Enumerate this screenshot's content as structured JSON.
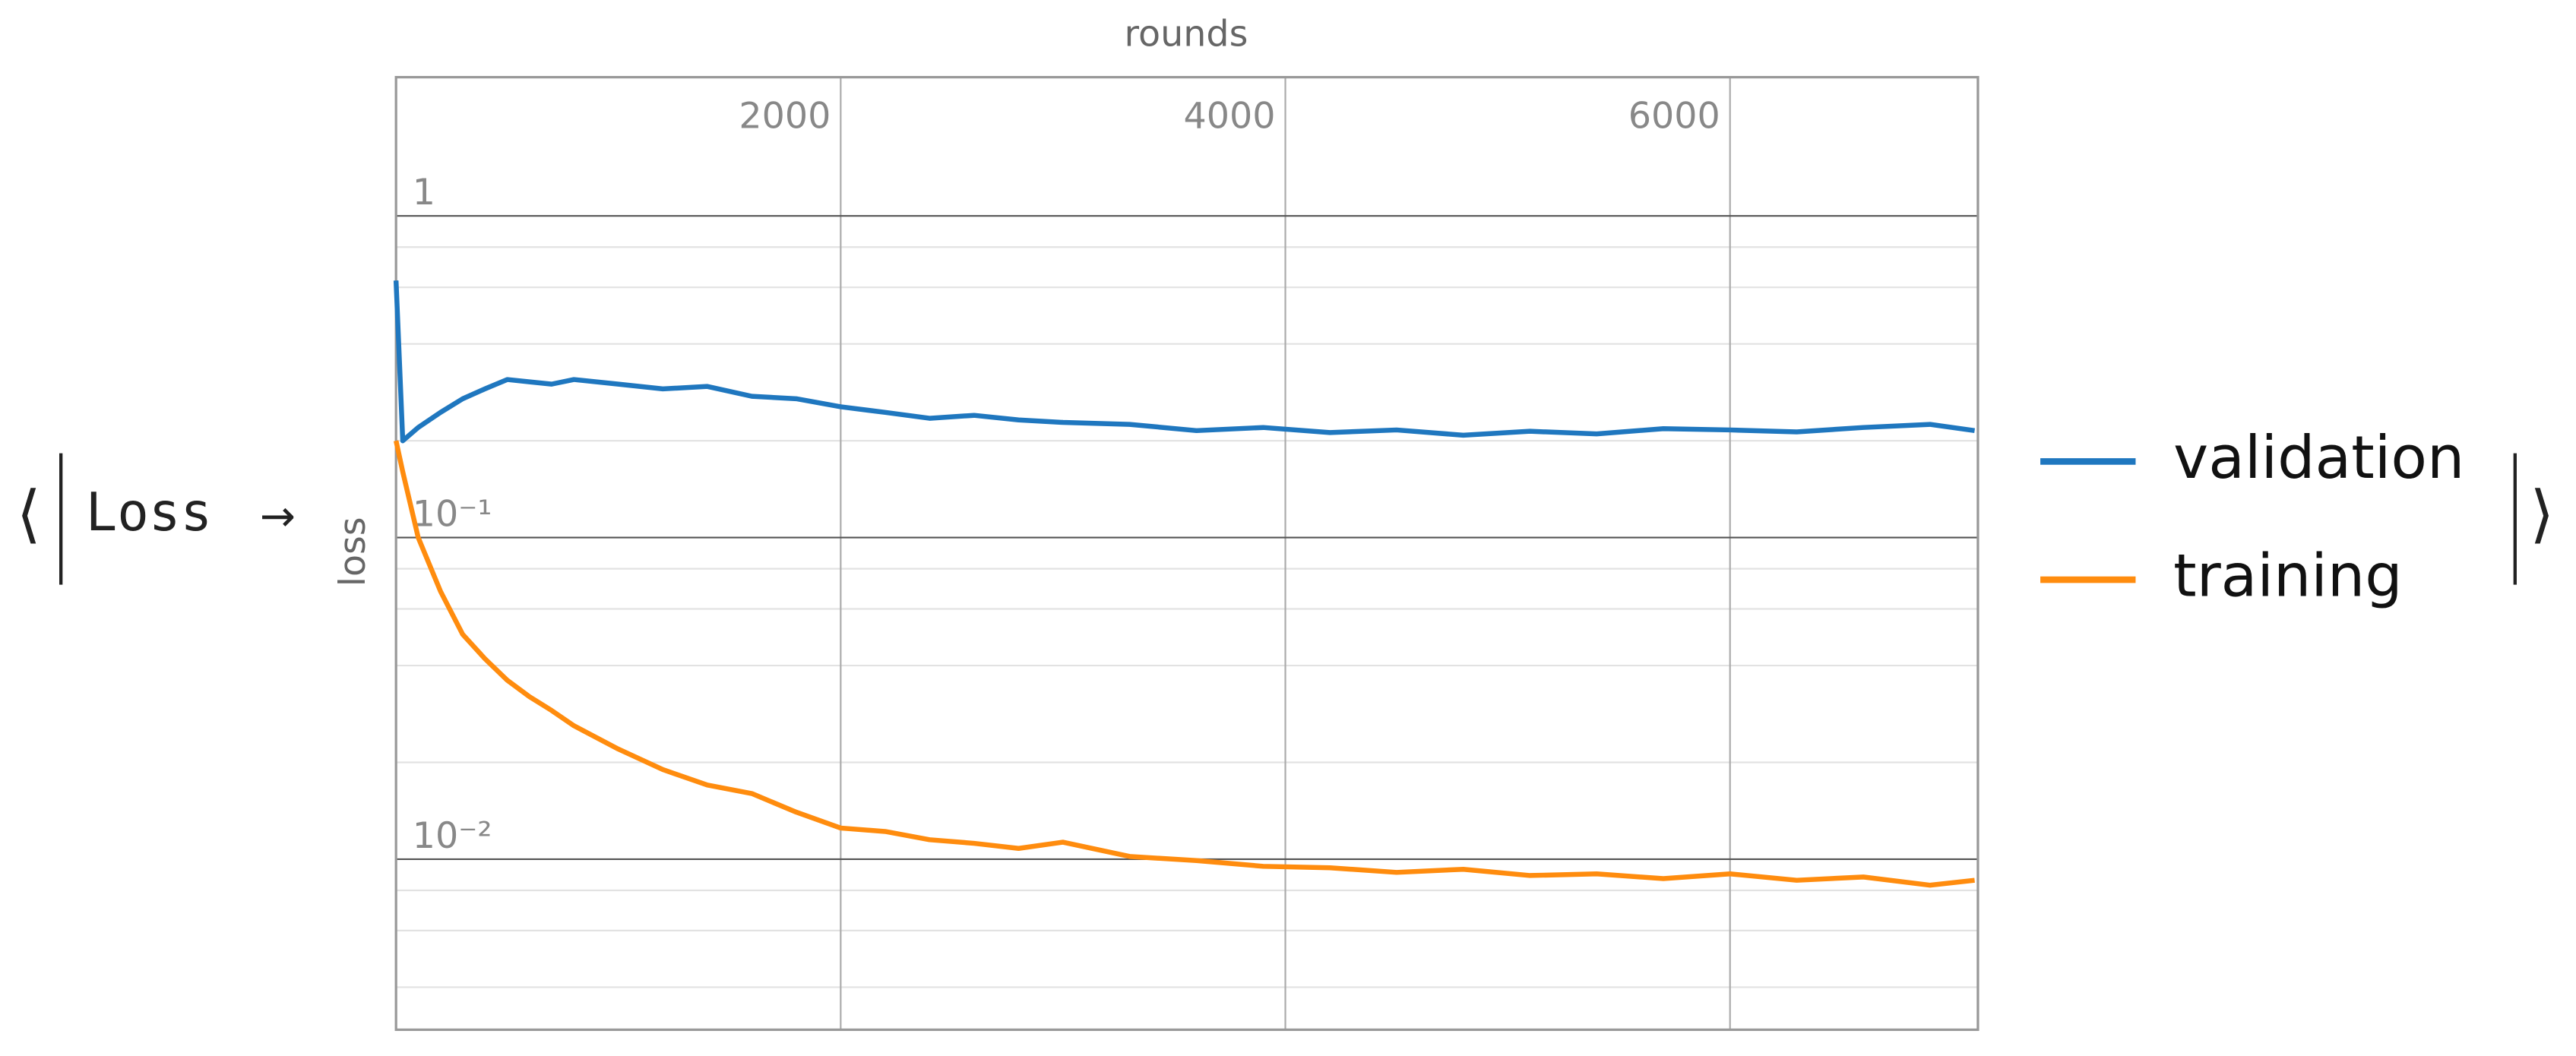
{
  "association": {
    "open": "⟨",
    "key": "Loss",
    "arrow": "→",
    "close": "⟩"
  },
  "chart_data": {
    "type": "line",
    "x_label": "rounds",
    "y_label": "loss",
    "x": [
      0,
      30,
      100,
      200,
      300,
      400,
      500,
      600,
      700,
      800,
      1000,
      1200,
      1400,
      1600,
      1800,
      2000,
      2200,
      2400,
      2600,
      2800,
      3000,
      3300,
      3600,
      3900,
      4200,
      4500,
      4800,
      5100,
      5400,
      5700,
      6000,
      6300,
      6600,
      6900,
      7100
    ],
    "series": [
      {
        "name": "validation",
        "color": "#1f77bf",
        "values": [
          0.63,
          0.2,
          0.22,
          0.245,
          0.27,
          0.29,
          0.31,
          0.305,
          0.3,
          0.31,
          0.3,
          0.29,
          0.295,
          0.275,
          0.27,
          0.255,
          0.245,
          0.235,
          0.24,
          0.232,
          0.228,
          0.225,
          0.215,
          0.22,
          0.212,
          0.216,
          0.208,
          0.214,
          0.21,
          0.218,
          0.216,
          0.213,
          0.22,
          0.225,
          0.215
        ]
      },
      {
        "name": "training",
        "color": "#ff8c0e",
        "values": [
          0.2,
          0.16,
          0.1,
          0.068,
          0.05,
          0.042,
          0.036,
          0.032,
          0.029,
          0.026,
          0.022,
          0.019,
          0.017,
          0.016,
          0.014,
          0.0125,
          0.0122,
          0.0115,
          0.0112,
          0.0108,
          0.0113,
          0.0102,
          0.0099,
          0.0095,
          0.0094,
          0.0091,
          0.0093,
          0.0089,
          0.009,
          0.0087,
          0.009,
          0.0086,
          0.0088,
          0.0083,
          0.0086
        ]
      }
    ],
    "xlim": [
      0,
      7115
    ],
    "ylim": [
      0.00295,
      2.7
    ],
    "ylog": true,
    "xticks": [
      2000,
      4000,
      6000
    ],
    "yticks": [
      1,
      {
        "value": 0.1,
        "label": "10⁻¹"
      },
      {
        "value": 0.01,
        "label": "10⁻²"
      }
    ],
    "minor_yticks": [
      0.8,
      0.6,
      0.4,
      0.2,
      0.08,
      0.06,
      0.04,
      0.02,
      0.008,
      0.006,
      0.004
    ],
    "grid": true,
    "legend": "right"
  }
}
